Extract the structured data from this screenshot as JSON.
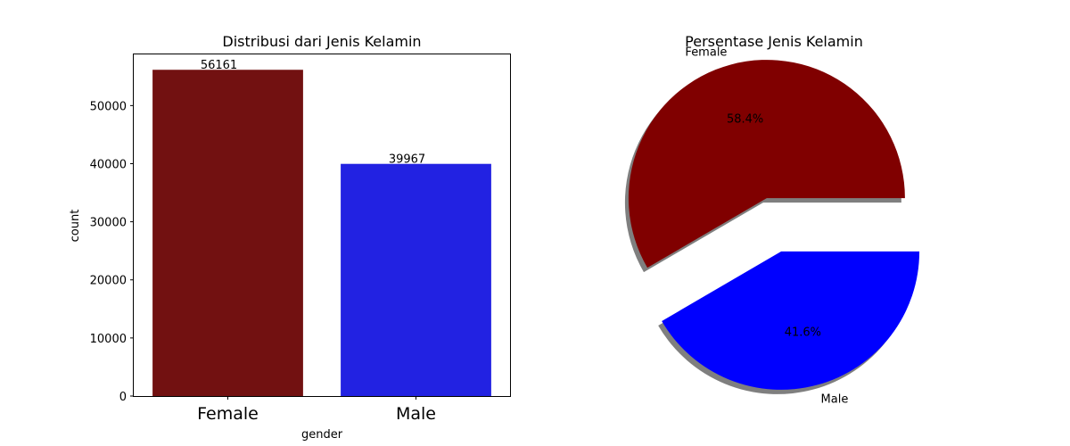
{
  "chart_data": [
    {
      "type": "bar",
      "title": "Distribusi dari Jenis Kelamin",
      "xlabel": "gender",
      "ylabel": "count",
      "categories": [
        "Female",
        "Male"
      ],
      "values": [
        56161,
        39967
      ],
      "data_labels": [
        "56161",
        "39967"
      ],
      "colors": [
        "#721111",
        "#2222E2"
      ],
      "ylim": [
        0,
        58808
      ],
      "yticks": [
        0,
        10000,
        20000,
        30000,
        40000,
        50000
      ],
      "ytick_labels": [
        "0",
        "10000",
        "20000",
        "30000",
        "40000",
        "50000"
      ],
      "grid": false
    },
    {
      "type": "pie",
      "title": "Persentase Jenis Kelamin",
      "labels": [
        "Female",
        "Male"
      ],
      "values": [
        58.4,
        41.6
      ],
      "pct_labels": [
        "58.4%",
        "41.6%"
      ],
      "colors": [
        "#800000",
        "#0000FF"
      ],
      "explode": [
        0.2,
        0.2
      ],
      "shadow": true
    }
  ]
}
